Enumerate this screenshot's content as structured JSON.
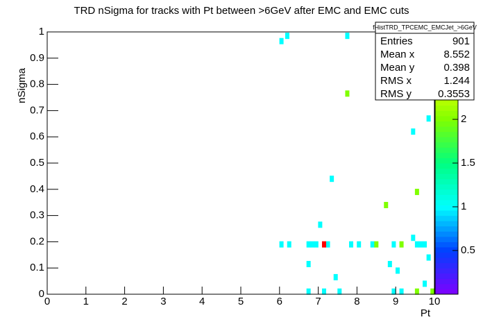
{
  "chart_data": {
    "type": "heatmap",
    "title": "TRD nSigma for tracks with Pt between >6GeV after EMC and EMC cuts",
    "x_label": "Pt",
    "y_label": "nSigma",
    "xlim": [
      0,
      10
    ],
    "ylim": [
      0,
      1
    ],
    "zlim": [
      0,
      3
    ],
    "xticks": [
      0,
      1,
      2,
      3,
      4,
      5,
      6,
      7,
      8,
      9,
      10
    ],
    "yticks": [
      0,
      0.1,
      0.2,
      0.3,
      0.4,
      0.5,
      0.6,
      0.7,
      0.8,
      0.9,
      1
    ],
    "zticks": [
      0.5,
      1,
      1.5,
      2
    ],
    "colorscale": [
      "#8000ff",
      "#0040ff",
      "#00ffff",
      "#00ff80",
      "#80ff00",
      "#ffff00",
      "#ff0000"
    ],
    "x": [
      6.05,
      6.2,
      7.75,
      9.45,
      9.85,
      7.35,
      7.05,
      6.05,
      6.25,
      6.75,
      6.85,
      6.95,
      7.25,
      7.85,
      8.05,
      8.4,
      8.95,
      9.55,
      9.65,
      9.75,
      9.45,
      6.75,
      8.85,
      9.85,
      9.05,
      7.45,
      9.75,
      6.75,
      7.15,
      7.55,
      8.95,
      9.15,
      7.75,
      9.55,
      8.75,
      8.5,
      9.15,
      9.55,
      9.95,
      7.15
    ],
    "y": [
      0.965,
      0.985,
      0.985,
      0.62,
      0.67,
      0.44,
      0.265,
      0.19,
      0.19,
      0.19,
      0.19,
      0.19,
      0.19,
      0.19,
      0.19,
      0.19,
      0.19,
      0.19,
      0.19,
      0.19,
      0.215,
      0.115,
      0.115,
      0.14,
      0.09,
      0.065,
      0.04,
      0.01,
      0.01,
      0.01,
      0.01,
      0.01,
      0.765,
      0.39,
      0.34,
      0.19,
      0.19,
      0.01,
      0.01,
      0.19
    ],
    "values": [
      1,
      1,
      1,
      1,
      1,
      1,
      1,
      1,
      1,
      1,
      1,
      1,
      1,
      1,
      1,
      1,
      1,
      1,
      1,
      1,
      1,
      1,
      1,
      1,
      1,
      1,
      1,
      1,
      1,
      1,
      1,
      1,
      2,
      2,
      2,
      2,
      2,
      2,
      2,
      3
    ],
    "stats": {
      "title": "fHistTRD_TPCEMC_EMCJet_>6GeV",
      "rows": [
        [
          "Entries",
          901
        ],
        [
          "Mean x",
          8.552
        ],
        [
          "Mean y",
          0.398
        ],
        [
          "RMS x",
          1.244
        ],
        [
          "RMS y",
          0.3553
        ]
      ]
    }
  }
}
